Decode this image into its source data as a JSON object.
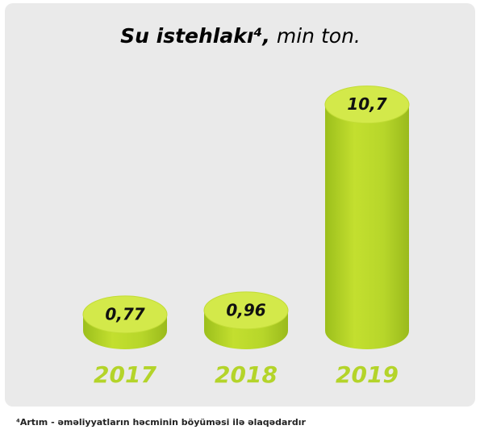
{
  "chart_data": {
    "type": "cylinder",
    "title": "Su istehlakı⁴,",
    "subtitle": "min ton.",
    "categories": [
      "2017",
      "2018",
      "2019"
    ],
    "values": [
      0.77,
      0.96,
      10.7
    ],
    "value_labels": [
      "0,77",
      "0,96",
      "10,7"
    ],
    "color": "#b4d42a",
    "footnote": "⁴Artım - əməliyyatların həcminin böyüməsi ilə əlaqədardır"
  }
}
